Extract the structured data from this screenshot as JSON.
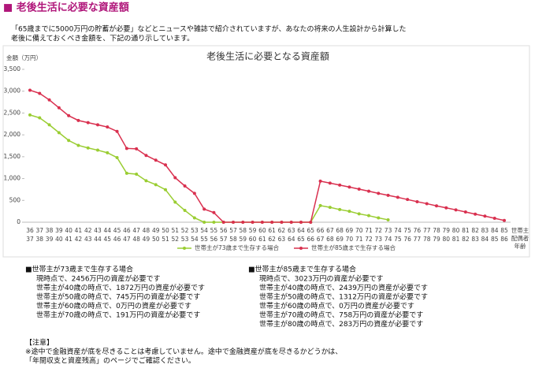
{
  "header": {
    "title": "■ 老後生活に必要な資産額"
  },
  "intro": [
    "「65歳までに5000万円の貯蓄が必要」などとニュースや雑誌で紹介されていますが、あなたの将来の人生設計から計算した",
    "老後に備えておくべき金額を、下記の通り示しています。"
  ],
  "chart_data": {
    "type": "line",
    "title": "老後生活に必要となる資産額",
    "y_label": "金額（万円）",
    "x_label_lines": [
      "世帯主",
      "配偶者",
      "年齢"
    ],
    "categories": [
      "36",
      "37",
      "38",
      "39",
      "40",
      "41",
      "42",
      "43",
      "44",
      "45",
      "46",
      "47",
      "48",
      "49",
      "50",
      "51",
      "52",
      "53",
      "54",
      "55",
      "56",
      "57",
      "58",
      "59",
      "60",
      "61",
      "62",
      "63",
      "64",
      "65",
      "66",
      "67",
      "68",
      "69",
      "70",
      "71",
      "72",
      "73",
      "74",
      "75",
      "76",
      "77",
      "78",
      "79",
      "80",
      "81",
      "82",
      "83",
      "84",
      "85"
    ],
    "categories2": [
      "37",
      "38",
      "39",
      "40",
      "41",
      "42",
      "43",
      "44",
      "45",
      "46",
      "47",
      "48",
      "49",
      "50",
      "51",
      "52",
      "53",
      "54",
      "55",
      "56",
      "57",
      "58",
      "59",
      "60",
      "61",
      "62",
      "63",
      "64",
      "65",
      "66",
      "67",
      "68",
      "69",
      "70",
      "71",
      "72",
      "73",
      "74",
      "75",
      "76",
      "77",
      "78",
      "79",
      "80",
      "81",
      "82",
      "83",
      "84",
      "85",
      "86"
    ],
    "ylim": [
      0,
      3500
    ],
    "yticks": [
      0,
      500,
      {
        "value": 1000,
        "label": "1,000"
      },
      {
        "value": 1500,
        "label": "1,500"
      },
      {
        "value": 2000,
        "label": "2,000"
      },
      {
        "value": 2500,
        "label": "2,500"
      },
      {
        "value": 3000,
        "label": "3,000"
      },
      {
        "value": 3500,
        "label": "3,500"
      }
    ],
    "grid": false,
    "legend": "bottom",
    "series": [
      {
        "name": "世帯主が73歳まで生存する場合",
        "color": "#9acd32",
        "values": [
          2456,
          2390,
          2230,
          2050,
          1872,
          1760,
          1700,
          1650,
          1590,
          1480,
          1120,
          1100,
          950,
          860,
          745,
          460,
          270,
          100,
          0,
          0,
          0,
          0,
          0,
          0,
          0,
          0,
          0,
          0,
          0,
          0,
          380,
          340,
          290,
          250,
          191,
          150,
          100,
          55,
          null,
          null,
          null,
          null,
          null,
          null,
          null,
          null,
          null,
          null,
          null,
          null
        ]
      },
      {
        "name": "世帯主が85歳まで生存する場合",
        "color": "#d9304f",
        "values": [
          3023,
          2950,
          2800,
          2620,
          2439,
          2330,
          2280,
          2230,
          2180,
          2080,
          1690,
          1680,
          1530,
          1420,
          1312,
          1020,
          830,
          660,
          300,
          220,
          0,
          0,
          0,
          0,
          0,
          0,
          0,
          0,
          0,
          0,
          940,
          895,
          850,
          805,
          758,
          710,
          660,
          615,
          570,
          520,
          470,
          425,
          375,
          330,
          283,
          235,
          185,
          140,
          90,
          40
        ]
      }
    ]
  },
  "blocks": [
    {
      "title": "■世帯主が73歳まで生存する場合",
      "lines": [
        "現時点で、2456万円の資産が必要です",
        "世帯主が40歳の時点で、1872万円の資産が必要です",
        "世帯主が50歳の時点で、745万円の資産が必要です",
        "世帯主が60歳の時点で、0万円の資産が必要です",
        "世帯主が70歳の時点で、191万円の資産が必要です"
      ]
    },
    {
      "title": "■世帯主が85歳まで生存する場合",
      "lines": [
        "現時点で、3023万円の資産が必要です",
        "世帯主が40歳の時点で、2439万円の資産が必要です",
        "世帯主が50歳の時点で、1312万円の資産が必要です",
        "世帯主が60歳の時点で、0万円の資産が必要です",
        "世帯主が70歳の時点で、758万円の資産が必要です",
        "世帯主が80歳の時点で、283万円の資産が必要です"
      ]
    }
  ],
  "notes": [
    "【注意】",
    "※途中で金融資産が底を尽きることは考慮していません。途中で金融資産が底を尽きるかどうかは、",
    "「年間収支と資産残高」のページでご確認ください。"
  ]
}
